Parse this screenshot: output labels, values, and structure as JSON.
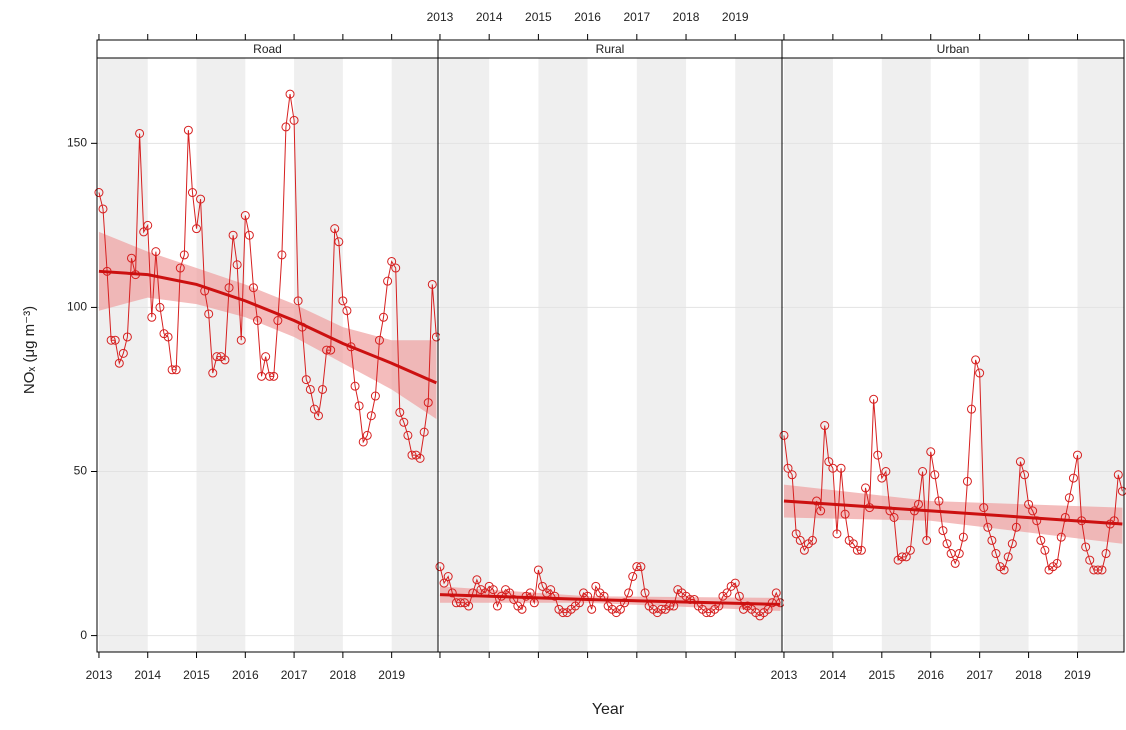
{
  "chart_data": [
    {
      "type": "line",
      "title": "Road",
      "color": "#d62020",
      "trend_color": "#cc1010",
      "band_color": "#f0a0a0",
      "xlabel": "Year",
      "ylabel": "NOₓ (μg m⁻³)",
      "xlim": [
        2012.96,
        2019.95
      ],
      "xticks": [
        2013,
        2014,
        2015,
        2016,
        2017,
        2018,
        2019
      ],
      "ylim": [
        -5,
        176
      ],
      "yticks": [
        0,
        50,
        100,
        150
      ],
      "grid": true,
      "x": [
        2013,
        2013.083,
        2013.167,
        2013.25,
        2013.333,
        2013.417,
        2013.5,
        2013.583,
        2013.667,
        2013.75,
        2013.833,
        2013.917,
        2014,
        2014.083,
        2014.167,
        2014.25,
        2014.333,
        2014.417,
        2014.5,
        2014.583,
        2014.667,
        2014.75,
        2014.833,
        2014.917,
        2015,
        2015.083,
        2015.167,
        2015.25,
        2015.333,
        2015.417,
        2015.5,
        2015.583,
        2015.667,
        2015.75,
        2015.833,
        2015.917,
        2016,
        2016.083,
        2016.167,
        2016.25,
        2016.333,
        2016.417,
        2016.5,
        2016.583,
        2016.667,
        2016.75,
        2016.833,
        2016.917,
        2017,
        2017.083,
        2017.167,
        2017.25,
        2017.333,
        2017.417,
        2017.5,
        2017.583,
        2017.667,
        2017.75,
        2017.833,
        2017.917,
        2018,
        2018.083,
        2018.167,
        2018.25,
        2018.333,
        2018.417,
        2018.5,
        2018.583,
        2018.667,
        2018.75,
        2018.833,
        2018.917,
        2019,
        2019.083,
        2019.167,
        2019.25,
        2019.333,
        2019.417,
        2019.5,
        2019.583,
        2019.667,
        2019.75,
        2019.833,
        2019.917
      ],
      "values": [
        135,
        130,
        111,
        90,
        90,
        83,
        86,
        91,
        115,
        110,
        153,
        123,
        125,
        97,
        117,
        100,
        92,
        91,
        81,
        81,
        112,
        116,
        154,
        135,
        124,
        133,
        105,
        98,
        80,
        85,
        85,
        84,
        106,
        122,
        113,
        90,
        128,
        122,
        106,
        96,
        79,
        85,
        79,
        79,
        96,
        116,
        155,
        165,
        157,
        102,
        94,
        78,
        75,
        69,
        67,
        75,
        87,
        87,
        124,
        120,
        102,
        99,
        88,
        76,
        70,
        59,
        61,
        67,
        73,
        90,
        97,
        108,
        114,
        112,
        68,
        65,
        61,
        55,
        55,
        54,
        62,
        71,
        107,
        91
      ],
      "trend_x": [
        2013,
        2014,
        2015,
        2016,
        2017,
        2018,
        2019,
        2019.917
      ],
      "trend": [
        111,
        110,
        107,
        102,
        96,
        89,
        83,
        77
      ],
      "trend_lower": [
        99,
        103,
        101,
        97,
        91,
        83,
        75,
        66
      ],
      "trend_upper": [
        123,
        117,
        112,
        107,
        101,
        94,
        90,
        90
      ]
    },
    {
      "type": "line",
      "title": "Rural",
      "color": "#d62020",
      "trend_color": "#cc1010",
      "band_color": "#f0a0a0",
      "xlim": [
        2012.96,
        2019.95
      ],
      "xticks": [
        2013,
        2014,
        2015,
        2016,
        2017,
        2018,
        2019
      ],
      "ylim": [
        -5,
        176
      ],
      "yticks": [
        0,
        50,
        100,
        150
      ],
      "grid": true,
      "x": [
        2013,
        2013.083,
        2013.167,
        2013.25,
        2013.333,
        2013.417,
        2013.5,
        2013.583,
        2013.667,
        2013.75,
        2013.833,
        2013.917,
        2014,
        2014.083,
        2014.167,
        2014.25,
        2014.333,
        2014.417,
        2014.5,
        2014.583,
        2014.667,
        2014.75,
        2014.833,
        2014.917,
        2015,
        2015.083,
        2015.167,
        2015.25,
        2015.333,
        2015.417,
        2015.5,
        2015.583,
        2015.667,
        2015.75,
        2015.833,
        2015.917,
        2016,
        2016.083,
        2016.167,
        2016.25,
        2016.333,
        2016.417,
        2016.5,
        2016.583,
        2016.667,
        2016.75,
        2016.833,
        2016.917,
        2017,
        2017.083,
        2017.167,
        2017.25,
        2017.333,
        2017.417,
        2017.5,
        2017.583,
        2017.667,
        2017.75,
        2017.833,
        2017.917,
        2018,
        2018.083,
        2018.167,
        2018.25,
        2018.333,
        2018.417,
        2018.5,
        2018.583,
        2018.667,
        2018.75,
        2018.833,
        2018.917,
        2019,
        2019.083,
        2019.167,
        2019.25,
        2019.333,
        2019.417,
        2019.5,
        2019.583,
        2019.667,
        2019.75,
        2019.833,
        2019.917
      ],
      "values": [
        21,
        16,
        18,
        13,
        10,
        10,
        10,
        9,
        13,
        17,
        14,
        13,
        15,
        14,
        9,
        12,
        14,
        13,
        11,
        9,
        8,
        12,
        13,
        10,
        20,
        15,
        13,
        14,
        12,
        8,
        7,
        7,
        8,
        9,
        10,
        13,
        12,
        8,
        15,
        13,
        12,
        9,
        8,
        7,
        8,
        10,
        13,
        18,
        21,
        21,
        13,
        9,
        8,
        7,
        8,
        8,
        9,
        9,
        14,
        13,
        12,
        11,
        11,
        9,
        8,
        7,
        7,
        8,
        9,
        12,
        13,
        15,
        16,
        12,
        8,
        9,
        8,
        7,
        6,
        7,
        8,
        10,
        13,
        10
      ],
      "trend_x": [
        2013,
        2016,
        2019.917
      ],
      "trend": [
        12.5,
        11,
        9.5
      ],
      "trend_lower": [
        10,
        10,
        7.5
      ],
      "trend_upper": [
        15,
        12,
        11.5
      ]
    },
    {
      "type": "line",
      "title": "Urban",
      "color": "#d62020",
      "trend_color": "#cc1010",
      "band_color": "#f0a0a0",
      "xlim": [
        2012.96,
        2019.95
      ],
      "xticks": [
        2013,
        2014,
        2015,
        2016,
        2017,
        2018,
        2019
      ],
      "ylim": [
        -5,
        176
      ],
      "yticks": [
        0,
        50,
        100,
        150
      ],
      "grid": true,
      "x": [
        2013,
        2013.083,
        2013.167,
        2013.25,
        2013.333,
        2013.417,
        2013.5,
        2013.583,
        2013.667,
        2013.75,
        2013.833,
        2013.917,
        2014,
        2014.083,
        2014.167,
        2014.25,
        2014.333,
        2014.417,
        2014.5,
        2014.583,
        2014.667,
        2014.75,
        2014.833,
        2014.917,
        2015,
        2015.083,
        2015.167,
        2015.25,
        2015.333,
        2015.417,
        2015.5,
        2015.583,
        2015.667,
        2015.75,
        2015.833,
        2015.917,
        2016,
        2016.083,
        2016.167,
        2016.25,
        2016.333,
        2016.417,
        2016.5,
        2016.583,
        2016.667,
        2016.75,
        2016.833,
        2016.917,
        2017,
        2017.083,
        2017.167,
        2017.25,
        2017.333,
        2017.417,
        2017.5,
        2017.583,
        2017.667,
        2017.75,
        2017.833,
        2017.917,
        2018,
        2018.083,
        2018.167,
        2018.25,
        2018.333,
        2018.417,
        2018.5,
        2018.583,
        2018.667,
        2018.75,
        2018.833,
        2018.917,
        2019,
        2019.083,
        2019.167,
        2019.25,
        2019.333,
        2019.417,
        2019.5,
        2019.583,
        2019.667,
        2019.75,
        2019.833,
        2019.917
      ],
      "values": [
        61,
        51,
        49,
        31,
        29,
        26,
        28,
        29,
        41,
        38,
        64,
        53,
        51,
        31,
        51,
        37,
        29,
        28,
        26,
        26,
        45,
        39,
        72,
        55,
        48,
        50,
        38,
        36,
        23,
        24,
        24,
        26,
        38,
        40,
        50,
        29,
        56,
        49,
        41,
        32,
        28,
        25,
        22,
        25,
        30,
        47,
        69,
        84,
        80,
        39,
        33,
        29,
        25,
        21,
        20,
        24,
        28,
        33,
        53,
        49,
        40,
        38,
        35,
        29,
        26,
        20,
        21,
        22,
        30,
        36,
        42,
        48,
        55,
        35,
        27,
        23,
        20,
        20,
        20,
        25,
        34,
        35,
        49,
        44
      ],
      "trend_x": [
        2013,
        2016,
        2019.917
      ],
      "trend": [
        41,
        38,
        34
      ],
      "trend_lower": [
        36,
        35,
        28
      ],
      "trend_upper": [
        46,
        41,
        39
      ]
    }
  ]
}
